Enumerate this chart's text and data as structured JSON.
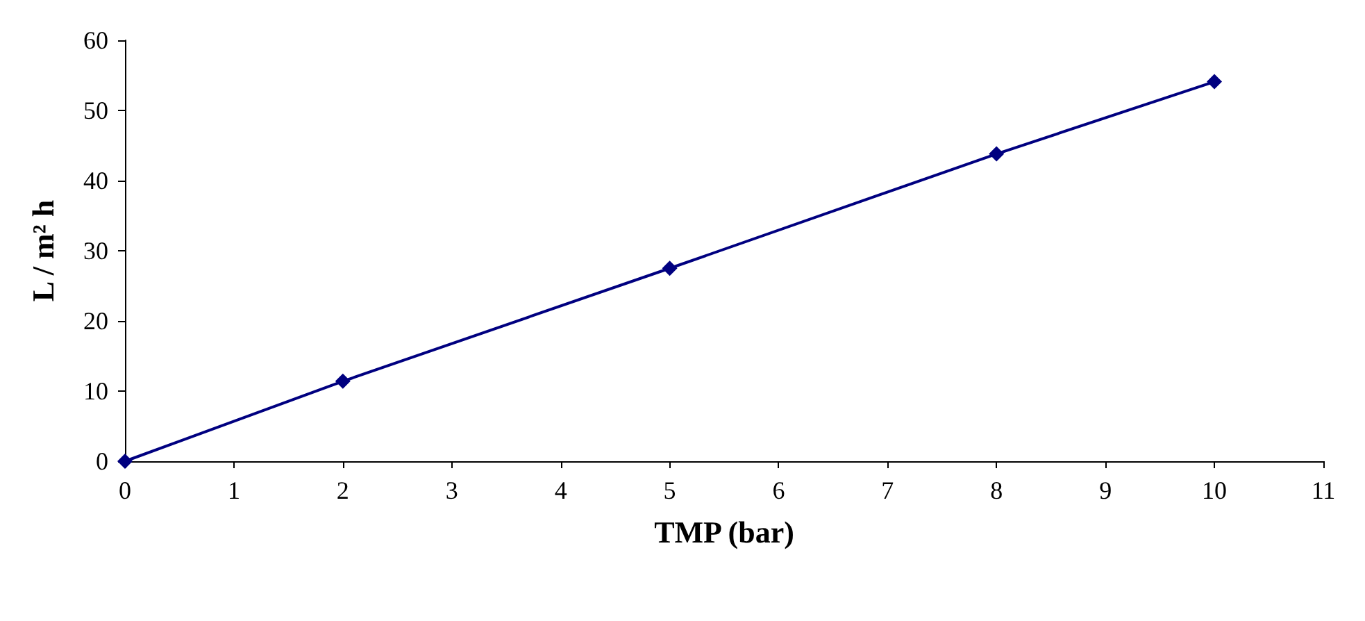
{
  "chart_data": {
    "type": "line",
    "xlabel": "TMP (bar)",
    "ylabel": "L / m² h",
    "x": [
      0,
      2,
      5,
      8,
      10
    ],
    "series": [
      {
        "color": "#000080",
        "values": [
          0,
          11.4,
          27.5,
          43.8,
          54.1
        ]
      }
    ],
    "xlim": [
      0,
      11
    ],
    "xticks": [
      0,
      1,
      2,
      3,
      4,
      5,
      6,
      7,
      8,
      9,
      10,
      11
    ],
    "ylim": [
      0,
      60
    ],
    "yticks": [
      0,
      10,
      20,
      30,
      40,
      50,
      60
    ],
    "grid": false,
    "marker": "diamond",
    "line_style": "solid"
  }
}
